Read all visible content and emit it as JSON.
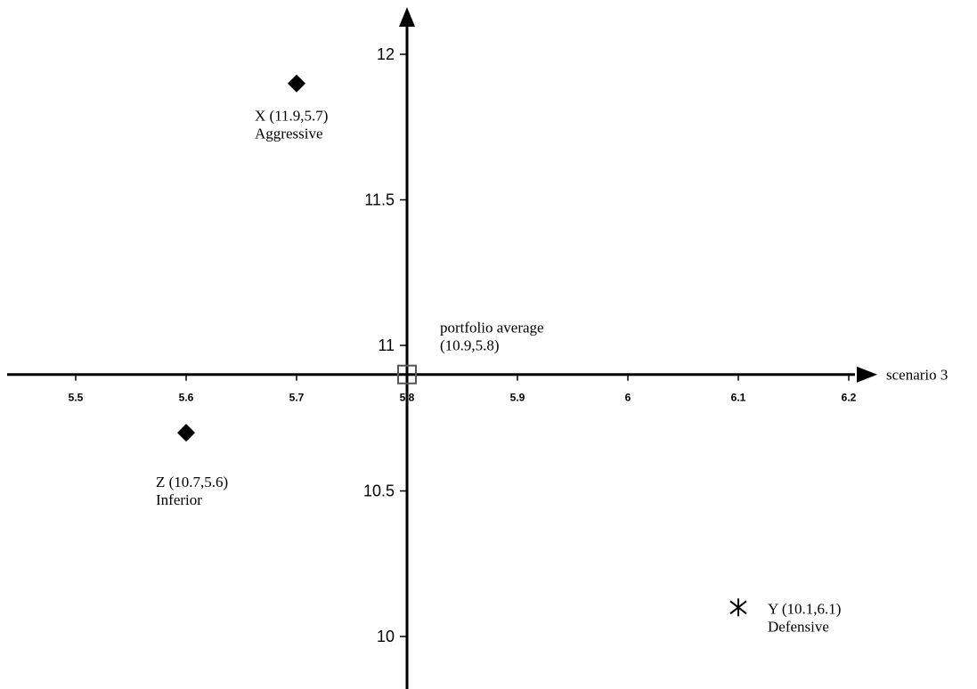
{
  "chart_data": {
    "type": "scatter",
    "x_axis_title": "scenario 3",
    "xlim": [
      5.5,
      6.2
    ],
    "ylim": [
      10,
      12
    ],
    "x_ticks": [
      "5.5",
      "5.6",
      "5.7",
      "5.8",
      "5.9",
      "6",
      "6.1",
      "6.2"
    ],
    "y_ticks": [
      "10",
      "10.5",
      "11",
      "11.5",
      "12"
    ],
    "x_tick_values": [
      5.5,
      5.6,
      5.7,
      5.8,
      5.9,
      6.0,
      6.1,
      6.2
    ],
    "y_tick_values": [
      10,
      10.5,
      11,
      11.5,
      12
    ],
    "axes_cross": {
      "x": 5.8,
      "y": 10.9
    },
    "grid": false,
    "points": [
      {
        "id": "X",
        "x": 5.7,
        "y": 11.9,
        "marker": "diamond",
        "label_lines": [
          "X (11.9,5.7)",
          "Aggressive"
        ]
      },
      {
        "id": "Z",
        "x": 5.6,
        "y": 10.7,
        "marker": "diamond",
        "label_lines": [
          "Z (10.7,5.6)",
          "Inferior"
        ]
      },
      {
        "id": "Y",
        "x": 6.1,
        "y": 10.1,
        "marker": "asterisk",
        "label_lines": [
          "Y (10.1,6.1)",
          "Defensive"
        ]
      },
      {
        "id": "avg",
        "x": 5.8,
        "y": 10.9,
        "marker": "square",
        "label_lines": [
          "portfolio average",
          "(10.9,5.8)"
        ]
      }
    ]
  }
}
